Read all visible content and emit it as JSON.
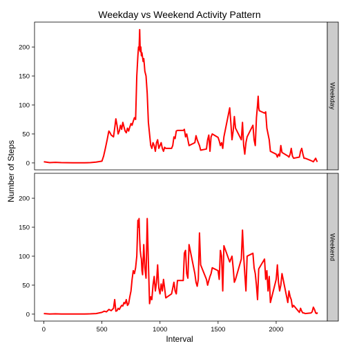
{
  "chart_data": {
    "type": "line",
    "title": "Weekday vs Weekend Activity Pattern",
    "xlabel": "Interval",
    "ylabel": "Number of Steps",
    "xlim": [
      -80,
      2440
    ],
    "ylim": [
      -12,
      243
    ],
    "x_ticks": [
      0,
      500,
      1000,
      1500,
      2000
    ],
    "x_tick_labels": [
      "0",
      "500",
      "1000",
      "1500",
      "2000"
    ],
    "y_ticks": [
      0,
      50,
      100,
      150,
      200
    ],
    "y_tick_labels": [
      "0",
      "50",
      "100",
      "150",
      "200"
    ],
    "grid": false,
    "legend": "none",
    "line_color": "#ff0000",
    "panels": [
      {
        "strip_label": "Weekday",
        "x": [
          0,
          50,
          100,
          150,
          200,
          250,
          300,
          350,
          400,
          450,
          500,
          515,
          530,
          545,
          555,
          560,
          570,
          580,
          600,
          610,
          620,
          630,
          640,
          650,
          660,
          670,
          680,
          690,
          700,
          710,
          720,
          730,
          740,
          750,
          760,
          770,
          780,
          790,
          800,
          810,
          815,
          820,
          825,
          830,
          835,
          840,
          845,
          850,
          855,
          860,
          865,
          870,
          880,
          890,
          900,
          910,
          920,
          925,
          930,
          940,
          950,
          960,
          970,
          980,
          990,
          1000,
          1010,
          1020,
          1030,
          1040,
          1050,
          1100,
          1110,
          1120,
          1130,
          1140,
          1150,
          1200,
          1210,
          1220,
          1230,
          1240,
          1250,
          1300,
          1310,
          1320,
          1330,
          1340,
          1350,
          1400,
          1410,
          1420,
          1430,
          1440,
          1450,
          1500,
          1510,
          1520,
          1530,
          1540,
          1550,
          1600,
          1610,
          1620,
          1630,
          1640,
          1650,
          1700,
          1710,
          1720,
          1730,
          1740,
          1750,
          1800,
          1810,
          1820,
          1830,
          1840,
          1845,
          1850,
          1855,
          1900,
          1910,
          1920,
          1930,
          1940,
          1950,
          2000,
          2010,
          2020,
          2030,
          2040,
          2050,
          2100,
          2110,
          2120,
          2130,
          2140,
          2150,
          2200,
          2210,
          2220,
          2230,
          2240,
          2250,
          2300,
          2310,
          2320,
          2330,
          2340,
          2350,
          2355
        ],
        "y": [
          2,
          0.5,
          1,
          0.5,
          0.4,
          0.3,
          0.2,
          0.3,
          0.5,
          1.5,
          3,
          12,
          25,
          40,
          50,
          55,
          52,
          48,
          45,
          60,
          76,
          65,
          50,
          55,
          65,
          58,
          70,
          62,
          55,
          52,
          60,
          55,
          62,
          68,
          65,
          72,
          78,
          75,
          150,
          185,
          200,
          195,
          230,
          192,
          200,
          185,
          190,
          182,
          175,
          180,
          170,
          158,
          150,
          120,
          70,
          50,
          30,
          28,
          25,
          35,
          30,
          20,
          35,
          40,
          25,
          30,
          35,
          25,
          20,
          27,
          25,
          25,
          30,
          45,
          42,
          55,
          56,
          56,
          58,
          45,
          50,
          40,
          30,
          35,
          47,
          40,
          35,
          30,
          22,
          24,
          40,
          48,
          20,
          45,
          50,
          44,
          38,
          30,
          35,
          25,
          45,
          95,
          70,
          40,
          55,
          80,
          60,
          40,
          70,
          30,
          15,
          35,
          45,
          65,
          40,
          30,
          78,
          100,
          115,
          95,
          90,
          86,
          88,
          60,
          50,
          40,
          20,
          15,
          10,
          15,
          12,
          30,
          18,
          12,
          10,
          15,
          25,
          12,
          8,
          10,
          20,
          25,
          15,
          8,
          8,
          4,
          3,
          2,
          5,
          8,
          3,
          2
        ]
      },
      {
        "strip_label": "Weekend",
        "x": [
          0,
          50,
          100,
          150,
          200,
          250,
          300,
          350,
          400,
          450,
          500,
          520,
          540,
          560,
          580,
          600,
          610,
          620,
          630,
          640,
          650,
          660,
          670,
          680,
          690,
          700,
          710,
          720,
          730,
          740,
          750,
          760,
          770,
          780,
          790,
          800,
          810,
          815,
          820,
          825,
          830,
          835,
          840,
          845,
          850,
          860,
          870,
          880,
          890,
          900,
          910,
          920,
          930,
          940,
          950,
          960,
          970,
          980,
          990,
          1000,
          1010,
          1020,
          1030,
          1040,
          1050,
          1100,
          1110,
          1120,
          1130,
          1140,
          1150,
          1200,
          1210,
          1220,
          1230,
          1240,
          1250,
          1300,
          1310,
          1320,
          1330,
          1340,
          1350,
          1400,
          1410,
          1420,
          1430,
          1440,
          1450,
          1500,
          1510,
          1520,
          1530,
          1540,
          1550,
          1600,
          1610,
          1620,
          1630,
          1640,
          1650,
          1700,
          1710,
          1720,
          1730,
          1740,
          1750,
          1800,
          1810,
          1820,
          1830,
          1840,
          1850,
          1900,
          1910,
          1920,
          1930,
          1940,
          1950,
          2000,
          2010,
          2020,
          2030,
          2040,
          2050,
          2100,
          2110,
          2120,
          2130,
          2140,
          2150,
          2200,
          2210,
          2220,
          2230,
          2240,
          2250,
          2300,
          2310,
          2320,
          2330,
          2340,
          2350,
          2355
        ],
        "y": [
          1,
          0.2,
          0.5,
          0.2,
          0.1,
          0.1,
          0.1,
          0.3,
          0.5,
          1,
          3,
          5,
          4,
          8,
          6,
          10,
          25,
          5,
          6,
          10,
          8,
          12,
          15,
          14,
          20,
          18,
          25,
          15,
          18,
          30,
          40,
          60,
          75,
          70,
          80,
          100,
          162,
          150,
          165,
          130,
          110,
          100,
          95,
          75,
          68,
          120,
          80,
          62,
          165,
          90,
          18,
          30,
          25,
          50,
          65,
          40,
          55,
          85,
          45,
          35,
          52,
          40,
          60,
          45,
          28,
          35,
          45,
          55,
          40,
          35,
          58,
          58,
          105,
          110,
          70,
          62,
          120,
          70,
          55,
          48,
          60,
          140,
          85,
          60,
          50,
          58,
          65,
          70,
          80,
          75,
          60,
          110,
          100,
          40,
          118,
          90,
          95,
          100,
          80,
          55,
          60,
          95,
          145,
          100,
          70,
          40,
          100,
          105,
          80,
          70,
          50,
          25,
          78,
          95,
          60,
          75,
          40,
          65,
          20,
          60,
          85,
          55,
          40,
          50,
          70,
          20,
          40,
          30,
          25,
          12,
          15,
          3,
          10,
          5,
          2,
          2,
          1,
          2,
          4,
          12,
          8,
          2,
          1,
          3
        ]
      }
    ]
  }
}
